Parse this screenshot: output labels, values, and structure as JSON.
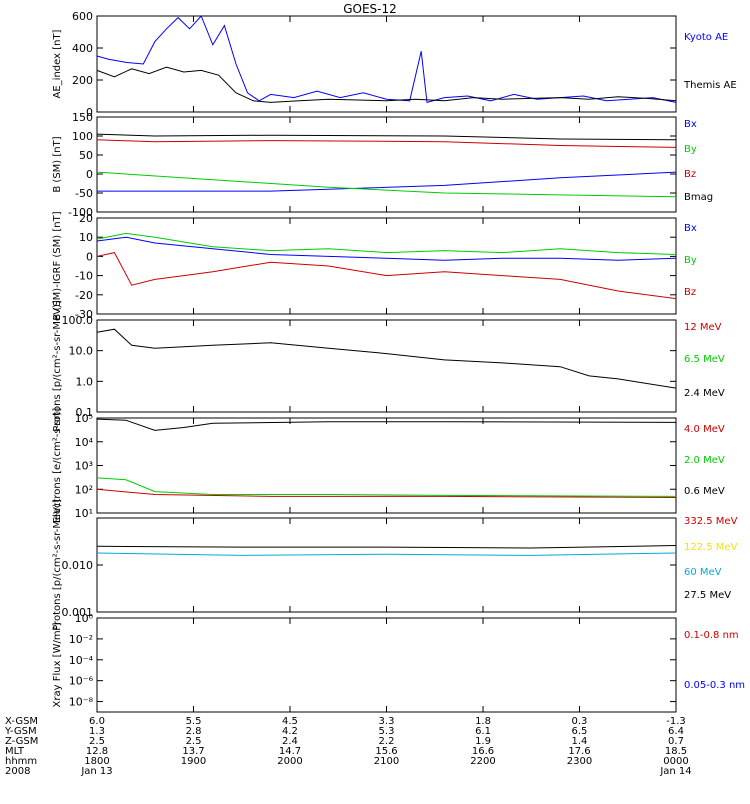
{
  "title": "GOES-12",
  "chart_data": [
    {
      "type": "line",
      "ylabel": "AE_index [nT]",
      "ylim": [
        0,
        600
      ],
      "y_ticks": [
        "0",
        "200",
        "400",
        "600"
      ],
      "series": [
        {
          "name": "Kyoto AE",
          "color": "#0000ff",
          "x": [
            0,
            0.02,
            0.05,
            0.08,
            0.1,
            0.12,
            0.14,
            0.16,
            0.18,
            0.2,
            0.22,
            0.24,
            0.26,
            0.28,
            0.3,
            0.34,
            0.38,
            0.42,
            0.46,
            0.5,
            0.54,
            0.56,
            0.57,
            0.6,
            0.64,
            0.68,
            0.72,
            0.76,
            0.8,
            0.84,
            0.88,
            0.92,
            0.96,
            1.0
          ],
          "y": [
            350,
            330,
            310,
            300,
            440,
            520,
            590,
            520,
            600,
            420,
            540,
            300,
            120,
            70,
            110,
            90,
            130,
            90,
            120,
            80,
            70,
            380,
            60,
            90,
            100,
            70,
            110,
            80,
            90,
            100,
            70,
            80,
            90,
            60
          ]
        },
        {
          "name": "Themis AE",
          "color": "#000000",
          "x": [
            0,
            0.03,
            0.06,
            0.09,
            0.12,
            0.15,
            0.18,
            0.21,
            0.24,
            0.27,
            0.3,
            0.35,
            0.4,
            0.45,
            0.5,
            0.55,
            0.6,
            0.65,
            0.7,
            0.75,
            0.8,
            0.85,
            0.9,
            0.95,
            1.0
          ],
          "y": [
            260,
            220,
            270,
            240,
            280,
            250,
            260,
            230,
            120,
            70,
            60,
            70,
            80,
            75,
            70,
            80,
            70,
            90,
            80,
            85,
            90,
            80,
            95,
            85,
            70
          ]
        }
      ]
    },
    {
      "type": "line",
      "ylabel": "B (SM) [nT]",
      "ylim": [
        -100,
        150
      ],
      "y_ticks": [
        "-100",
        "-50",
        "0",
        "50",
        "100",
        "150"
      ],
      "series": [
        {
          "name": "Bx",
          "color": "#0000ff",
          "x": [
            0,
            0.3,
            0.6,
            0.8,
            1.0
          ],
          "y": [
            -45,
            -45,
            -30,
            -10,
            5
          ]
        },
        {
          "name": "By",
          "color": "#00cc00",
          "x": [
            0,
            0.2,
            0.4,
            0.6,
            0.8,
            1.0
          ],
          "y": [
            5,
            -15,
            -35,
            -50,
            -55,
            -60
          ]
        },
        {
          "name": "Bz",
          "color": "#cc0000",
          "x": [
            0,
            0.1,
            0.3,
            0.6,
            0.8,
            1.0
          ],
          "y": [
            90,
            85,
            88,
            85,
            75,
            70
          ]
        },
        {
          "name": "Bmag",
          "color": "#000000",
          "x": [
            0,
            0.1,
            0.3,
            0.6,
            0.8,
            1.0
          ],
          "y": [
            105,
            100,
            102,
            100,
            92,
            90
          ]
        }
      ]
    },
    {
      "type": "line",
      "ylabel": "B (SM)-IGRF (SM) [nT]",
      "ylim": [
        -30,
        20
      ],
      "y_ticks": [
        "-30",
        "-20",
        "-10",
        "0",
        "10",
        "20"
      ],
      "series": [
        {
          "name": "Bx",
          "color": "#0000ff",
          "x": [
            0,
            0.05,
            0.1,
            0.2,
            0.3,
            0.4,
            0.5,
            0.6,
            0.7,
            0.8,
            0.9,
            1.0
          ],
          "y": [
            8,
            10,
            7,
            4,
            1,
            0,
            -1,
            -2,
            -1,
            -1,
            -2,
            -1
          ]
        },
        {
          "name": "By",
          "color": "#00cc00",
          "x": [
            0,
            0.05,
            0.1,
            0.2,
            0.3,
            0.4,
            0.5,
            0.6,
            0.7,
            0.8,
            0.9,
            1.0
          ],
          "y": [
            9,
            12,
            10,
            5,
            3,
            4,
            2,
            3,
            2,
            4,
            2,
            1
          ]
        },
        {
          "name": "Bz",
          "color": "#cc0000",
          "x": [
            0,
            0.03,
            0.06,
            0.1,
            0.15,
            0.2,
            0.3,
            0.4,
            0.5,
            0.6,
            0.7,
            0.8,
            0.9,
            1.0
          ],
          "y": [
            0,
            2,
            -15,
            -12,
            -10,
            -8,
            -3,
            -5,
            -10,
            -8,
            -10,
            -12,
            -18,
            -22
          ]
        }
      ]
    },
    {
      "type": "line",
      "ylabel": "Protons [p/(cm²-s-sr-MeV)]",
      "yscale": "log",
      "ylim": [
        0.1,
        100
      ],
      "y_ticks": [
        "0.1",
        "1.0",
        "10.0",
        "100.0"
      ],
      "series": [
        {
          "name": "12 MeV",
          "color": "#cc0000"
        },
        {
          "name": "6.5 MeV",
          "color": "#00cc00"
        },
        {
          "name": "2.4 MeV",
          "color": "#000000",
          "x": [
            0,
            0.03,
            0.06,
            0.1,
            0.2,
            0.3,
            0.4,
            0.5,
            0.6,
            0.7,
            0.8,
            0.85,
            0.9,
            1.0
          ],
          "y": [
            40,
            50,
            15,
            12,
            15,
            18,
            12,
            8,
            5,
            4,
            3,
            1.5,
            1.2,
            0.6
          ]
        }
      ]
    },
    {
      "type": "line",
      "ylabel": "Electrons [e/(cm²-s-sr)]",
      "yscale": "log",
      "ylim": [
        10,
        100000
      ],
      "y_ticks": [
        "10¹",
        "10²",
        "10³",
        "10⁴",
        "10⁵"
      ],
      "series": [
        {
          "name": "4.0 MeV",
          "color": "#cc0000",
          "x": [
            0,
            0.1,
            0.3,
            0.6,
            1.0
          ],
          "y": [
            100,
            60,
            50,
            50,
            45
          ]
        },
        {
          "name": "2.0 MeV",
          "color": "#00cc00",
          "x": [
            0,
            0.05,
            0.1,
            0.2,
            0.4,
            0.6,
            1.0
          ],
          "y": [
            300,
            250,
            80,
            60,
            60,
            55,
            50
          ]
        },
        {
          "name": "0.6 MeV",
          "color": "#000000",
          "x": [
            0,
            0.05,
            0.1,
            0.15,
            0.2,
            0.4,
            0.6,
            1.0
          ],
          "y": [
            90000,
            80000,
            30000,
            40000,
            60000,
            70000,
            70000,
            65000
          ]
        }
      ]
    },
    {
      "type": "line",
      "ylabel": "Protons [p/(cm²-s-sr-MeV)]",
      "yscale": "log",
      "ylim": [
        0.001,
        0.1
      ],
      "y_ticks": [
        "0.001",
        "0.010"
      ],
      "series": [
        {
          "name": "332.5 MeV",
          "color": "#cc0000"
        },
        {
          "name": "122.5 MeV",
          "color": "#ffdd00"
        },
        {
          "name": "60 MeV",
          "color": "#00aadd",
          "x": [
            0,
            0.25,
            0.5,
            0.75,
            1.0
          ],
          "y": [
            0.018,
            0.016,
            0.017,
            0.016,
            0.018
          ]
        },
        {
          "name": "27.5 MeV",
          "color": "#000000",
          "x": [
            0,
            0.25,
            0.5,
            0.75,
            1.0
          ],
          "y": [
            0.025,
            0.024,
            0.024,
            0.023,
            0.026
          ]
        }
      ]
    },
    {
      "type": "line",
      "ylabel": "Xray Flux [W/m²]",
      "yscale": "log",
      "ylim": [
        1e-09,
        1
      ],
      "y_ticks": [
        "10⁰",
        "10⁻²",
        "10⁻⁴",
        "10⁻⁶",
        "10⁻⁸"
      ],
      "series": [
        {
          "name": "0.1-0.8 nm",
          "color": "#cc0000"
        },
        {
          "name": "0.05-0.3 nm",
          "color": "#0000ff"
        }
      ]
    }
  ],
  "x_axis": {
    "row_labels": [
      "X-GSM",
      "Y-GSM",
      "Z-GSM",
      "MLT",
      "hhmm",
      "2008"
    ],
    "columns": [
      {
        "pos": 0.0,
        "values": [
          "6.0",
          "1.3",
          "2.5",
          "12.8",
          "1800",
          "Jan 13"
        ]
      },
      {
        "pos": 0.1667,
        "values": [
          "5.5",
          "2.8",
          "2.5",
          "13.7",
          "1900",
          ""
        ]
      },
      {
        "pos": 0.3333,
        "values": [
          "4.5",
          "4.2",
          "2.4",
          "14.7",
          "2000",
          ""
        ]
      },
      {
        "pos": 0.5,
        "values": [
          "3.3",
          "5.3",
          "2.2",
          "15.6",
          "2100",
          ""
        ]
      },
      {
        "pos": 0.6667,
        "values": [
          "1.8",
          "6.1",
          "1.9",
          "16.6",
          "2200",
          ""
        ]
      },
      {
        "pos": 0.8333,
        "values": [
          "0.3",
          "6.5",
          "1.4",
          "17.6",
          "2300",
          ""
        ]
      },
      {
        "pos": 1.0,
        "values": [
          "-1.3",
          "6.4",
          "0.7",
          "18.5",
          "0000",
          "Jan 14"
        ]
      }
    ]
  }
}
